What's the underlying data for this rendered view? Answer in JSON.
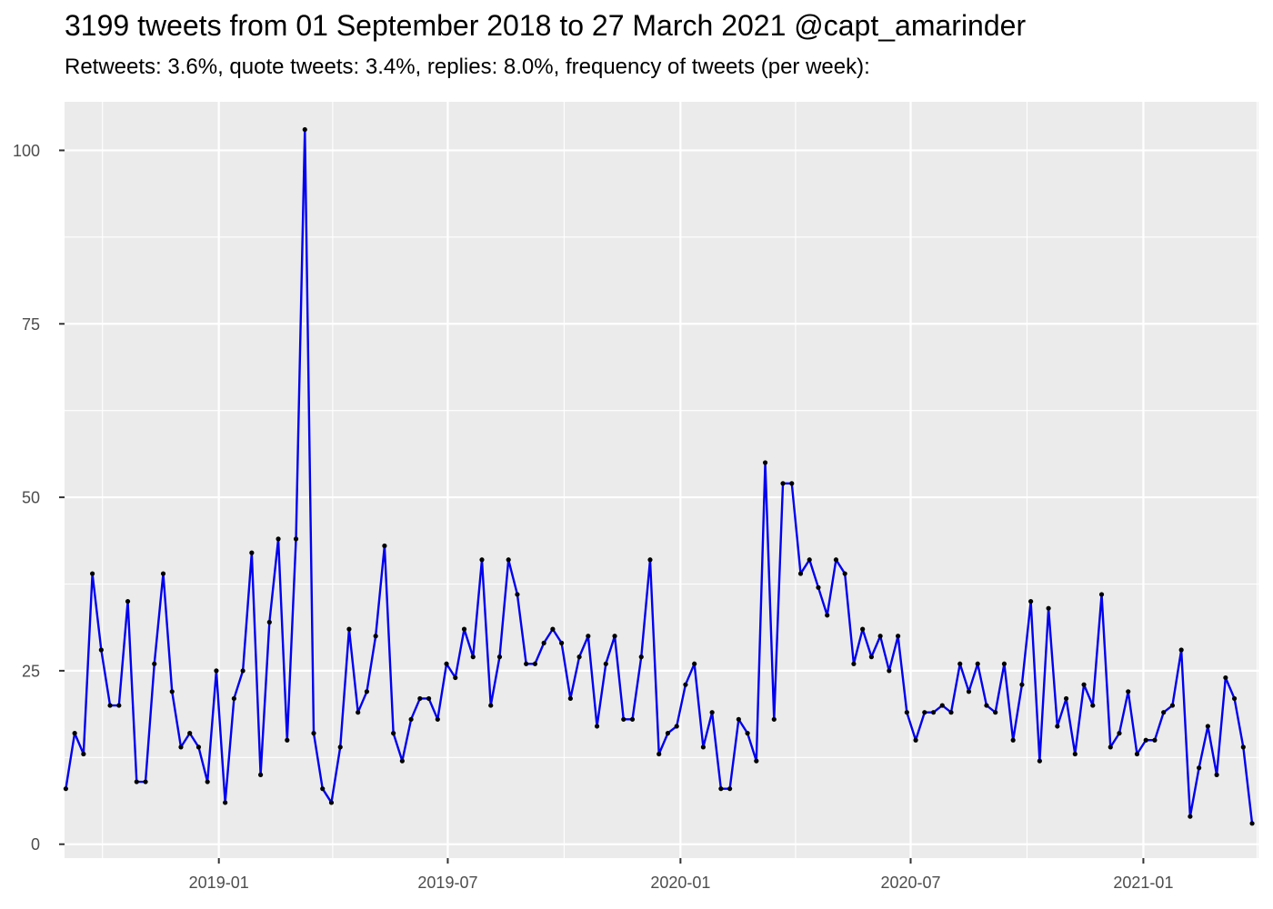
{
  "chart_data": {
    "type": "line",
    "title": "3199 tweets from 01 September 2018 to 27 March 2021 @capt_amarinder",
    "subtitle": "Retweets: 3.6%, quote tweets: 3.4%, replies: 8.0%, frequency of tweets (per week):",
    "xlabel": "",
    "ylabel": "",
    "x_type": "date",
    "xlim": [
      "2018-09-01",
      "2021-04-02"
    ],
    "ylim": [
      -2,
      107
    ],
    "yticks": [
      0,
      25,
      50,
      75,
      100
    ],
    "xticks": [
      "2019-01",
      "2019-07",
      "2020-01",
      "2020-07",
      "2021-01"
    ],
    "grid": true,
    "background": "#ebebeb",
    "line_color": "#0000ee",
    "point_color": "#000000",
    "series": [
      {
        "x": [
          "2018-09-02",
          "2018-09-09",
          "2018-09-16",
          "2018-09-23",
          "2018-09-30",
          "2018-10-07",
          "2018-10-14",
          "2018-10-21",
          "2018-10-28",
          "2018-11-04",
          "2018-11-11",
          "2018-11-18",
          "2018-11-25",
          "2018-12-02",
          "2018-12-09",
          "2018-12-16",
          "2018-12-23",
          "2018-12-30",
          "2019-01-06",
          "2019-01-13",
          "2019-01-20",
          "2019-01-27",
          "2019-02-03",
          "2019-02-10",
          "2019-02-17",
          "2019-02-24",
          "2019-03-03",
          "2019-03-10",
          "2019-03-17",
          "2019-03-24",
          "2019-03-31",
          "2019-04-07",
          "2019-04-14",
          "2019-04-21",
          "2019-04-28",
          "2019-05-05",
          "2019-05-12",
          "2019-05-19",
          "2019-05-26",
          "2019-06-02",
          "2019-06-09",
          "2019-06-16",
          "2019-06-23",
          "2019-06-30",
          "2019-07-07",
          "2019-07-14",
          "2019-07-21",
          "2019-07-28",
          "2019-08-04",
          "2019-08-11",
          "2019-08-18",
          "2019-08-25",
          "2019-09-01",
          "2019-09-08",
          "2019-09-15",
          "2019-09-22",
          "2019-09-29",
          "2019-10-06",
          "2019-10-13",
          "2019-10-20",
          "2019-10-27",
          "2019-11-03",
          "2019-11-10",
          "2019-11-17",
          "2019-11-24",
          "2019-12-01",
          "2019-12-08",
          "2019-12-15",
          "2019-12-22",
          "2019-12-29",
          "2020-01-05",
          "2020-01-12",
          "2020-01-19",
          "2020-01-26",
          "2020-02-02",
          "2020-02-09",
          "2020-02-16",
          "2020-02-23",
          "2020-03-01",
          "2020-03-08",
          "2020-03-15",
          "2020-03-22",
          "2020-03-29",
          "2020-04-05",
          "2020-04-12",
          "2020-04-19",
          "2020-04-26",
          "2020-05-03",
          "2020-05-10",
          "2020-05-17",
          "2020-05-24",
          "2020-05-31",
          "2020-06-07",
          "2020-06-14",
          "2020-06-21",
          "2020-06-28",
          "2020-07-05",
          "2020-07-12",
          "2020-07-19",
          "2020-07-26",
          "2020-08-02",
          "2020-08-09",
          "2020-08-16",
          "2020-08-23",
          "2020-08-30",
          "2020-09-06",
          "2020-09-13",
          "2020-09-20",
          "2020-09-27",
          "2020-10-04",
          "2020-10-11",
          "2020-10-18",
          "2020-10-25",
          "2020-11-01",
          "2020-11-08",
          "2020-11-15",
          "2020-11-22",
          "2020-11-29",
          "2020-12-06",
          "2020-12-13",
          "2020-12-20",
          "2020-12-27",
          "2021-01-03",
          "2021-01-10",
          "2021-01-17",
          "2021-01-24",
          "2021-01-31",
          "2021-02-07",
          "2021-02-14",
          "2021-02-21",
          "2021-02-28",
          "2021-03-07",
          "2021-03-14",
          "2021-03-21",
          "2021-03-28"
        ],
        "y": [
          8,
          16,
          13,
          39,
          28,
          20,
          20,
          35,
          9,
          9,
          26,
          39,
          22,
          14,
          16,
          14,
          9,
          25,
          6,
          21,
          25,
          42,
          10,
          32,
          44,
          15,
          44,
          103,
          16,
          8,
          6,
          14,
          31,
          19,
          22,
          30,
          43,
          16,
          12,
          18,
          21,
          21,
          18,
          26,
          24,
          31,
          27,
          41,
          20,
          27,
          41,
          36,
          26,
          26,
          29,
          31,
          29,
          21,
          27,
          30,
          17,
          26,
          30,
          18,
          18,
          27,
          41,
          13,
          16,
          17,
          23,
          26,
          14,
          19,
          8,
          8,
          18,
          16,
          12,
          55,
          18,
          52,
          52,
          39,
          41,
          37,
          33,
          41,
          39,
          26,
          31,
          27,
          30,
          25,
          30,
          19,
          15,
          19,
          19,
          20,
          19,
          26,
          22,
          26,
          20,
          19,
          26,
          15,
          23,
          35,
          12,
          34,
          17,
          21,
          13,
          23,
          20,
          36,
          14,
          16,
          22,
          13,
          15,
          15,
          19,
          20,
          28,
          4,
          11,
          17,
          10,
          24,
          21,
          14,
          3
        ]
      }
    ]
  }
}
